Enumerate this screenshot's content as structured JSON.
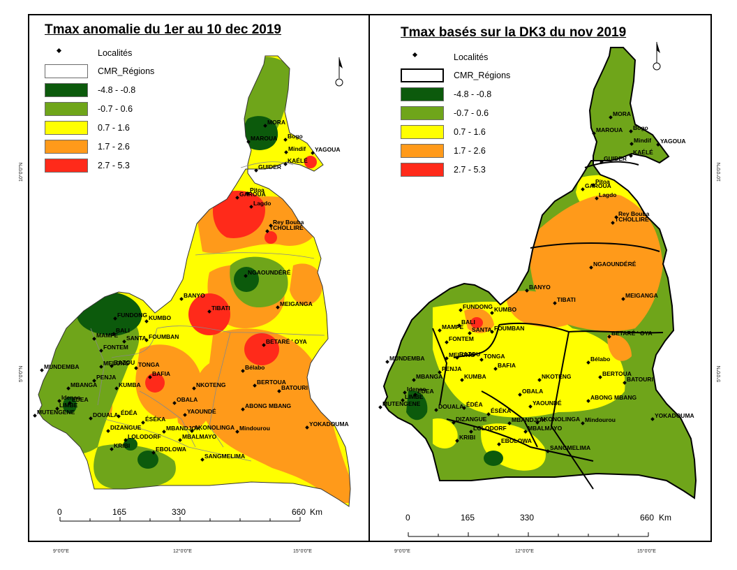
{
  "maps": [
    {
      "title": "Tmax anomalie du 1er au 10 dec 2019",
      "legend": {
        "localites": "Localités",
        "regions": "CMR_Régions",
        "classes": [
          {
            "label": "-4.8 - -0.8",
            "color": "#0c5a0c"
          },
          {
            "label": "-0.7 - 0.6",
            "color": "#6fa51a"
          },
          {
            "label": "0.7 - 1.6",
            "color": "#ffff00"
          },
          {
            "label": "1.7 - 2.6",
            "color": "#ff9a1a"
          },
          {
            "label": "2.7 - 5.3",
            "color": "#ff2a1a"
          }
        ]
      },
      "scalebar": {
        "ticks": [
          "0",
          "165",
          "330",
          "660"
        ],
        "unit": "Km"
      },
      "coords": {
        "x": [
          "9°0'0\"E",
          "12°0'0\"E",
          "15°0'0\"E"
        ],
        "y": [
          "10°0'0\"N",
          "5°0'0\"N"
        ]
      }
    },
    {
      "title": "Tmax basés sur la DK3 du nov 2019",
      "legend": {
        "localites": "Localités",
        "regions": "CMR_Régions",
        "classes": [
          {
            "label": "-4.8 - -0.8",
            "color": "#0c5a0c"
          },
          {
            "label": "-0.7 - 0.6",
            "color": "#6fa51a"
          },
          {
            "label": "0.7 - 1.6",
            "color": "#ffff00"
          },
          {
            "label": "1.7 - 2.6",
            "color": "#ff9a1a"
          },
          {
            "label": "2.7 - 5.3",
            "color": "#ff2a1a"
          }
        ]
      },
      "scalebar": {
        "ticks": [
          "0",
          "165",
          "330",
          "660"
        ],
        "unit": "Km"
      },
      "coords": {
        "x": [
          "9°0'0\"E",
          "12°0'0\"E",
          "15°0'0\"E"
        ],
        "y": [
          "10°0'0\"N",
          "5°0'0\"N"
        ]
      }
    }
  ],
  "localites": [
    "MORA",
    "MAROUA",
    "Bogo",
    "Mindif",
    "YAGOUA",
    "KAÉLÉ",
    "GUIDER",
    "GAROUA",
    "Pitoa",
    "Lagdo",
    "Rey Bouba",
    "TCHOLLIRÉ",
    "NGAOUNDÉRÉ",
    "MEIGANGA",
    "BANYO",
    "TIBATI",
    "FUNDONG",
    "KUMBO",
    "BALI",
    "SANTA",
    "FOUMBAN",
    "MAMFE",
    "FONTEM",
    "BETARÉ ' OYA",
    "MUNDEMBA",
    "MELONG",
    "BAZOU",
    "TONGA",
    "PENJA",
    "KUMBA",
    "BAFIA",
    "Bélabo",
    "MBANGA",
    "NKOTENG",
    "BERTOUA",
    "BATOURI",
    "Idenao",
    "EDEA",
    "LIMBE",
    "OBALA",
    "MUTENGENE",
    "DOUALA",
    "ÉDÉA",
    "YAOUNDÉ",
    "ABONG MBANG",
    "ÉSÉKA",
    "DIZANGUE",
    "MBANDJOK",
    "AKONOLINGA",
    "Mindourou",
    "YOKADOUMA",
    "LOLODORF",
    "MBALMAYO",
    "KRIBI",
    "EBOLOWA",
    "SANGMELIMA"
  ]
}
